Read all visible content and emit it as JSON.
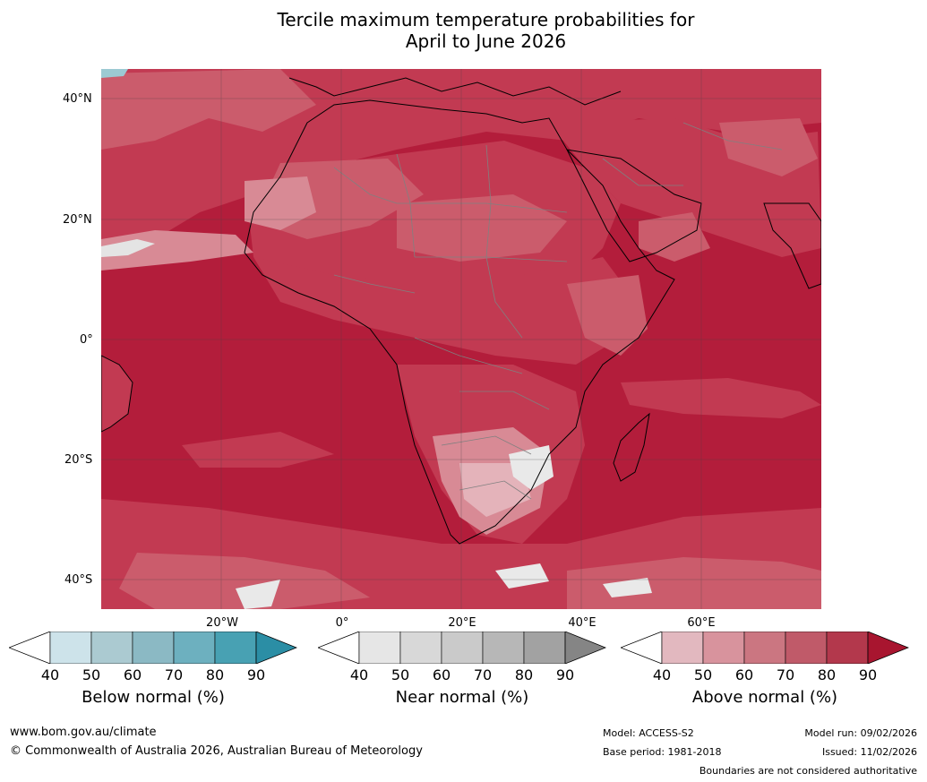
{
  "title_line1": "Tercile maximum temperature probabilities for",
  "title_line2": "April to June 2026",
  "map": {
    "latitude_labels": [
      "40°N",
      "20°N",
      "0°",
      "20°S",
      "40°S"
    ],
    "longitude_labels": [
      "20°W",
      "0°",
      "20°E",
      "40°E",
      "60°E"
    ],
    "colors": {
      "ocean_above_90": "#b31d3b",
      "above_80": "#c23a52",
      "above_70": "#cb5c6c",
      "above_60": "#d88a95",
      "above_50": "#e4b3ba",
      "near_normal": "#e9e9e9",
      "below_normal": "#9ccad3",
      "coastline": "#000000",
      "borders": "#808080",
      "gridlines": "#444444"
    }
  },
  "colorbars": {
    "ticks": [
      "40",
      "50",
      "60",
      "70",
      "80",
      "90"
    ],
    "below": {
      "label": "Below normal (%)",
      "colors": [
        "#ffffff",
        "#cde3ea",
        "#abcad1",
        "#8bb9c4",
        "#6db0bf",
        "#48a1b3",
        "#2b8ea5"
      ]
    },
    "near": {
      "label": "Near normal (%)",
      "colors": [
        "#ffffff",
        "#e6e6e6",
        "#d8d8d8",
        "#cacaca",
        "#b7b7b7",
        "#a2a2a2",
        "#858585"
      ]
    },
    "above": {
      "label": "Above normal (%)",
      "colors": [
        "#ffffff",
        "#e2b8bf",
        "#d8939d",
        "#cb7681",
        "#c05a69",
        "#b3384c",
        "#a8152f"
      ]
    }
  },
  "footer": {
    "website": "www.bom.gov.au/climate",
    "copyright": "© Commonwealth of Australia 2026, Australian Bureau of Meteorology",
    "model": "Model: ACCESS-S2",
    "base_period": "Base period: 1981-2018",
    "model_run": "Model run: 09/02/2026",
    "issued": "Issued: 11/02/2026",
    "disclaimer": "Boundaries are not considered authoritative"
  }
}
